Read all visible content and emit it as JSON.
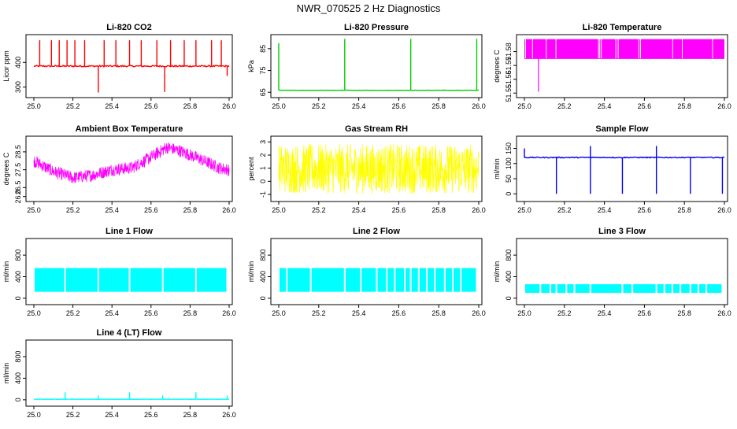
{
  "figure": {
    "title": "NWR_070525  2 Hz Diagnostics"
  },
  "colors": {
    "red": "#ff0000",
    "green": "#00cc00",
    "magenta": "#ff00ff",
    "yellow": "#ffff00",
    "blue": "#0000ff",
    "cyan": "#00ffff",
    "axis": "#000000"
  },
  "chart_data": [
    {
      "id": "co2",
      "type": "line",
      "title": "Li-820 CO2",
      "ylabel": "Licor ppm",
      "color": "red",
      "xlim": [
        25.0,
        26.0
      ],
      "ylim": [
        270,
        500
      ],
      "xticks": [
        "25.0",
        "25.2",
        "25.4",
        "25.6",
        "25.8",
        "26.0"
      ],
      "yticks": [
        "300",
        "400"
      ],
      "pattern": "baseline_spikes",
      "baseline": 385,
      "noise": 6,
      "spikes": [
        {
          "x": 25.03,
          "y": 490
        },
        {
          "x": 25.09,
          "y": 490
        },
        {
          "x": 25.13,
          "y": 490
        },
        {
          "x": 25.17,
          "y": 490
        },
        {
          "x": 25.21,
          "y": 490
        },
        {
          "x": 25.26,
          "y": 490
        },
        {
          "x": 25.33,
          "y": 278
        },
        {
          "x": 25.36,
          "y": 490
        },
        {
          "x": 25.42,
          "y": 490
        },
        {
          "x": 25.49,
          "y": 490
        },
        {
          "x": 25.55,
          "y": 490
        },
        {
          "x": 25.63,
          "y": 490
        },
        {
          "x": 25.67,
          "y": 280
        },
        {
          "x": 25.7,
          "y": 490
        },
        {
          "x": 25.77,
          "y": 490
        },
        {
          "x": 25.83,
          "y": 490
        },
        {
          "x": 25.91,
          "y": 490
        },
        {
          "x": 25.96,
          "y": 490
        },
        {
          "x": 25.99,
          "y": 345
        }
      ]
    },
    {
      "id": "pressure",
      "type": "line",
      "title": "Li-820 Pressure",
      "ylabel": "kPa",
      "color": "green",
      "xlim": [
        25.0,
        26.0
      ],
      "ylim": [
        64,
        90
      ],
      "xticks": [
        "25.0",
        "25.2",
        "25.4",
        "25.6",
        "25.8",
        "26.0"
      ],
      "yticks": [
        "65",
        "75",
        "85"
      ],
      "pattern": "baseline_spikes",
      "baseline": 65.9,
      "noise": 0.15,
      "spikes": [
        {
          "x": 25.0,
          "y": 87.5
        },
        {
          "x": 25.33,
          "y": 89.5
        },
        {
          "x": 25.66,
          "y": 89.5
        },
        {
          "x": 25.99,
          "y": 89.5
        }
      ]
    },
    {
      "id": "licortemp",
      "type": "line",
      "title": "Li-820 Temperature",
      "ylabel": "degrees C",
      "color": "magenta",
      "xlim": [
        25.0,
        26.0
      ],
      "ylim": [
        51.549,
        51.59
      ],
      "xticks": [
        "25.0",
        "25.2",
        "25.4",
        "25.6",
        "25.8",
        "26.0"
      ],
      "yticks": [
        "51.55",
        "51.56",
        "51.57",
        "51.58"
      ],
      "pattern": "two_level",
      "low": 51.575,
      "high": 51.589,
      "dips": [
        {
          "x": 25.07,
          "y": 51.551
        }
      ]
    },
    {
      "id": "boxtemp",
      "type": "line",
      "title": "Ambient Box Temperature",
      "ylabel": "degrees C",
      "color": "magenta",
      "xlim": [
        25.0,
        26.0
      ],
      "ylim": [
        25.9,
        29.2
      ],
      "xticks": [
        "25.0",
        "25.2",
        "25.4",
        "25.6",
        "25.8",
        "26.0"
      ],
      "yticks": [
        "26.0",
        "26.5",
        "27.5",
        "28.5"
      ],
      "pattern": "trend_noise",
      "trend": [
        [
          25.0,
          28.0
        ],
        [
          25.1,
          27.4
        ],
        [
          25.2,
          27.05
        ],
        [
          25.3,
          27.2
        ],
        [
          25.4,
          27.5
        ],
        [
          25.5,
          27.6
        ],
        [
          25.6,
          28.2
        ],
        [
          25.68,
          28.75
        ],
        [
          25.75,
          28.55
        ],
        [
          25.85,
          28.1
        ],
        [
          25.95,
          27.6
        ],
        [
          26.0,
          27.5
        ]
      ],
      "noise": 0.35
    },
    {
      "id": "rh",
      "type": "line",
      "title": "Gas Stream RH",
      "ylabel": "percent",
      "color": "yellow",
      "xlim": [
        25.0,
        26.0
      ],
      "ylim": [
        -1.3,
        3.2
      ],
      "xticks": [
        "25.0",
        "25.2",
        "25.4",
        "25.6",
        "25.8",
        "26.0"
      ],
      "yticks": [
        "-1",
        "0",
        "1",
        "2",
        "3"
      ],
      "pattern": "noise_band",
      "center": 0.95,
      "noise": 1.9
    },
    {
      "id": "sampleflow",
      "type": "line",
      "title": "Sample Flow",
      "ylabel": "ml/min",
      "color": "blue",
      "xlim": [
        25.0,
        26.0
      ],
      "ylim": [
        -15,
        180
      ],
      "xticks": [
        "25.0",
        "25.2",
        "25.4",
        "25.6",
        "25.8",
        "26.0"
      ],
      "yticks": [
        "0",
        "50",
        "100",
        "150"
      ],
      "pattern": "baseline_spikes",
      "baseline": 120,
      "noise": 3,
      "spikes": [
        {
          "x": 25.0,
          "y": 150
        },
        {
          "x": 25.16,
          "y": 0
        },
        {
          "x": 25.33,
          "y": 0
        },
        {
          "x": 25.33,
          "y": 158
        },
        {
          "x": 25.49,
          "y": 0
        },
        {
          "x": 25.66,
          "y": 0
        },
        {
          "x": 25.66,
          "y": 158
        },
        {
          "x": 25.83,
          "y": 0
        },
        {
          "x": 25.99,
          "y": 0
        }
      ]
    },
    {
      "id": "line1",
      "type": "line",
      "title": "Line 1 Flow",
      "ylabel": "ml/min",
      "color": "cyan",
      "xlim": [
        25.0,
        26.0
      ],
      "ylim": [
        -60,
        1050
      ],
      "xticks": [
        "25.0",
        "25.2",
        "25.4",
        "25.6",
        "25.8",
        "26.0"
      ],
      "yticks": [
        "0",
        "400",
        "800"
      ],
      "pattern": "blocks",
      "low": 120,
      "high": 560,
      "gaps": [
        25.0,
        25.16,
        25.33,
        25.49,
        25.66,
        25.83,
        25.99
      ]
    },
    {
      "id": "line2",
      "type": "line",
      "title": "Line 2 Flow",
      "ylabel": "ml/min",
      "color": "cyan",
      "xlim": [
        25.0,
        26.0
      ],
      "ylim": [
        -60,
        1050
      ],
      "xticks": [
        "25.0",
        "25.2",
        "25.4",
        "25.6",
        "25.8",
        "26.0"
      ],
      "yticks": [
        "0",
        "400",
        "800"
      ],
      "pattern": "blocks",
      "low": 120,
      "high": 560,
      "gaps": [
        25.0,
        25.04,
        25.16,
        25.33,
        25.41,
        25.49,
        25.54,
        25.58,
        25.63,
        25.66,
        25.7,
        25.74,
        25.78,
        25.83,
        25.87,
        25.91,
        25.99
      ]
    },
    {
      "id": "line3",
      "type": "line",
      "title": "Line 3 Flow",
      "ylabel": "ml/min",
      "color": "cyan",
      "xlim": [
        25.0,
        26.0
      ],
      "ylim": [
        -60,
        1050
      ],
      "xticks": [
        "25.0",
        "25.2",
        "25.4",
        "25.6",
        "25.8",
        "26.0"
      ],
      "yticks": [
        "0",
        "400",
        "800"
      ],
      "pattern": "blocks",
      "low": 100,
      "high": 260,
      "gaps": [
        25.0,
        25.08,
        25.13,
        25.16,
        25.21,
        25.25,
        25.33,
        25.49,
        25.54,
        25.66,
        25.7,
        25.74,
        25.78,
        25.83,
        25.87,
        25.91,
        25.99
      ]
    },
    {
      "id": "line4",
      "type": "line",
      "title": "Line 4 (LT) Flow",
      "ylabel": "ml/min",
      "color": "cyan",
      "xlim": [
        25.0,
        26.0
      ],
      "ylim": [
        -60,
        1050
      ],
      "xticks": [
        "25.0",
        "25.2",
        "25.4",
        "25.6",
        "25.8",
        "26.0"
      ],
      "yticks": [
        "0",
        "400",
        "800"
      ],
      "pattern": "baseline_spikes",
      "baseline": 10,
      "noise": 3,
      "spikes": [
        {
          "x": 25.16,
          "y": 140
        },
        {
          "x": 25.33,
          "y": 80
        },
        {
          "x": 25.49,
          "y": 140
        },
        {
          "x": 25.66,
          "y": 80
        },
        {
          "x": 25.83,
          "y": 140
        },
        {
          "x": 25.99,
          "y": 80
        }
      ]
    }
  ]
}
